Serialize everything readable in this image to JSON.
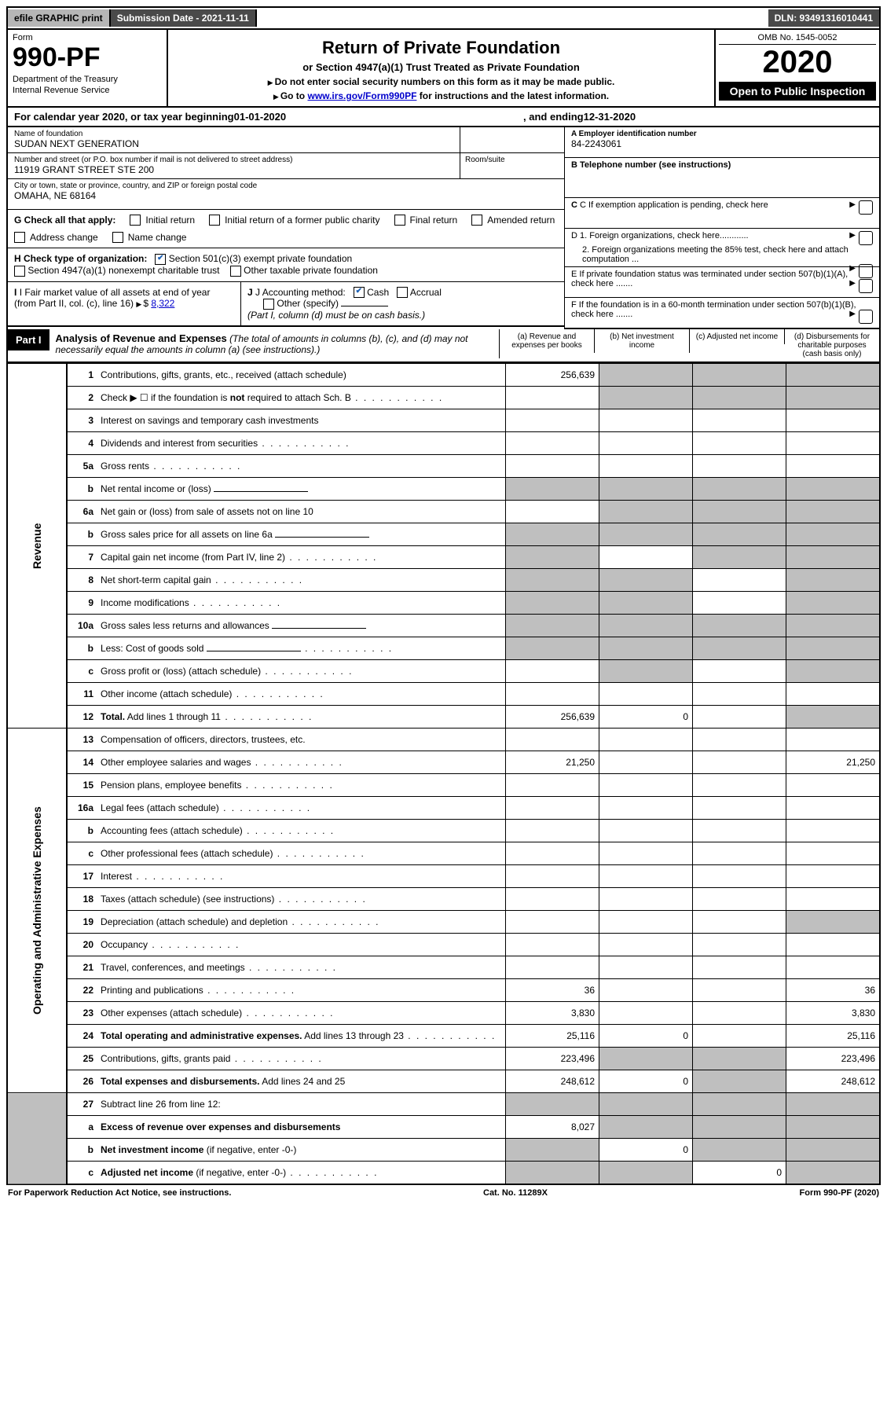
{
  "topbar": {
    "efile": "efile GRAPHIC print",
    "submission": "Submission Date - 2021-11-11",
    "dln": "DLN: 93491316010441"
  },
  "header": {
    "form_label": "Form",
    "form_number": "990-PF",
    "dept1": "Department of the Treasury",
    "dept2": "Internal Revenue Service",
    "title": "Return of Private Foundation",
    "subtitle": "or Section 4947(a)(1) Trust Treated as Private Foundation",
    "note1": "Do not enter social security numbers on this form as it may be made public.",
    "note2_pre": "Go to ",
    "note2_link": "www.irs.gov/Form990PF",
    "note2_post": " for instructions and the latest information.",
    "omb": "OMB No. 1545-0052",
    "year": "2020",
    "open": "Open to Public Inspection"
  },
  "calendar": {
    "text_pre": "For calendar year 2020, or tax year beginning ",
    "begin": "01-01-2020",
    "mid": ", and ending ",
    "end": "12-31-2020"
  },
  "info": {
    "name_label": "Name of foundation",
    "name": "SUDAN NEXT GENERATION",
    "addr_label": "Number and street (or P.O. box number if mail is not delivered to street address)",
    "addr": "11919 GRANT STREET STE 200",
    "room_label": "Room/suite",
    "city_label": "City or town, state or province, country, and ZIP or foreign postal code",
    "city": "OMAHA, NE  68164",
    "ein_label": "A Employer identification number",
    "ein": "84-2243061",
    "phone_label": "B Telephone number (see instructions)",
    "c_label": "C If exemption application is pending, check here",
    "d1": "D 1. Foreign organizations, check here............",
    "d2": "2. Foreign organizations meeting the 85% test, check here and attach computation ...",
    "e_label": "E  If private foundation status was terminated under section 507(b)(1)(A), check here .......",
    "f_label": "F  If the foundation is in a 60-month termination under section 507(b)(1)(B), check here .......",
    "g_label": "G Check all that apply:",
    "g_opts": [
      "Initial return",
      "Initial return of a former public charity",
      "Final return",
      "Amended return",
      "Address change",
      "Name change"
    ],
    "h_label": "H Check type of organization:",
    "h_opt1": "Section 501(c)(3) exempt private foundation",
    "h_opt2": "Section 4947(a)(1) nonexempt charitable trust",
    "h_opt3": "Other taxable private foundation",
    "i_label": "I Fair market value of all assets at end of year (from Part II, col. (c), line 16)",
    "i_value": "8,322",
    "j_label": "J Accounting method:",
    "j_cash": "Cash",
    "j_accrual": "Accrual",
    "j_other": "Other (specify)",
    "j_note": "(Part I, column (d) must be on cash basis.)"
  },
  "part1": {
    "label": "Part I",
    "title": "Analysis of Revenue and Expenses",
    "title_note": "(The total of amounts in columns (b), (c), and (d) may not necessarily equal the amounts in column (a) (see instructions).)",
    "col_a": "(a)   Revenue and expenses per books",
    "col_b": "(b)   Net investment income",
    "col_c": "(c)   Adjusted net income",
    "col_d": "(d)   Disbursements for charitable purposes (cash basis only)"
  },
  "sides": {
    "revenue": "Revenue",
    "expenses": "Operating and Administrative Expenses"
  },
  "rows": [
    {
      "n": "1",
      "d": "Contributions, gifts, grants, etc., received (attach schedule)",
      "a": "256,639",
      "shb": 1,
      "shc": 1,
      "shd": 1
    },
    {
      "n": "2",
      "d": "Check ▶ ☐ if the foundation is <b>not</b> required to attach Sch. B",
      "dots": 1,
      "noamt": 1,
      "shb": 1,
      "shc": 1,
      "shd": 1
    },
    {
      "n": "3",
      "d": "Interest on savings and temporary cash investments"
    },
    {
      "n": "4",
      "d": "Dividends and interest from securities",
      "dots": 1
    },
    {
      "n": "5a",
      "d": "Gross rents",
      "dots": 1
    },
    {
      "n": "b",
      "d": "Net rental income or (loss)",
      "box": 1,
      "shall": 1
    },
    {
      "n": "6a",
      "d": "Net gain or (loss) from sale of assets not on line 10",
      "shb": 1,
      "shc": 1,
      "shd": 1
    },
    {
      "n": "b",
      "d": "Gross sales price for all assets on line 6a",
      "box": 1,
      "shall": 1
    },
    {
      "n": "7",
      "d": "Capital gain net income (from Part IV, line 2)",
      "dots": 1,
      "sha": 1,
      "shc": 1,
      "shd": 1
    },
    {
      "n": "8",
      "d": "Net short-term capital gain",
      "dots": 1,
      "sha": 1,
      "shb": 1,
      "shd": 1
    },
    {
      "n": "9",
      "d": "Income modifications",
      "dots": 1,
      "sha": 1,
      "shb": 1,
      "shd": 1
    },
    {
      "n": "10a",
      "d": "Gross sales less returns and allowances",
      "box": 1,
      "shall": 1
    },
    {
      "n": "b",
      "d": "Less: Cost of goods sold",
      "dots": 1,
      "box": 1,
      "shall": 1
    },
    {
      "n": "c",
      "d": "Gross profit or (loss) (attach schedule)",
      "dots": 1,
      "shb": 1,
      "shd": 1
    },
    {
      "n": "11",
      "d": "Other income (attach schedule)",
      "dots": 1
    },
    {
      "n": "12",
      "d": "<b>Total.</b> Add lines 1 through 11",
      "dots": 1,
      "a": "256,639",
      "b": "0",
      "shd": 1
    }
  ],
  "exp_rows": [
    {
      "n": "13",
      "d": "Compensation of officers, directors, trustees, etc."
    },
    {
      "n": "14",
      "d": "Other employee salaries and wages",
      "dots": 1,
      "a": "21,250",
      "dd": "21,250"
    },
    {
      "n": "15",
      "d": "Pension plans, employee benefits",
      "dots": 1
    },
    {
      "n": "16a",
      "d": "Legal fees (attach schedule)",
      "dots": 1
    },
    {
      "n": "b",
      "d": "Accounting fees (attach schedule)",
      "dots": 1
    },
    {
      "n": "c",
      "d": "Other professional fees (attach schedule)",
      "dots": 1
    },
    {
      "n": "17",
      "d": "Interest",
      "dots": 1
    },
    {
      "n": "18",
      "d": "Taxes (attach schedule) (see instructions)",
      "dots": 1
    },
    {
      "n": "19",
      "d": "Depreciation (attach schedule) and depletion",
      "dots": 1,
      "shd": 1
    },
    {
      "n": "20",
      "d": "Occupancy",
      "dots": 1
    },
    {
      "n": "21",
      "d": "Travel, conferences, and meetings",
      "dots": 1
    },
    {
      "n": "22",
      "d": "Printing and publications",
      "dots": 1,
      "a": "36",
      "dd": "36"
    },
    {
      "n": "23",
      "d": "Other expenses (attach schedule)",
      "dots": 1,
      "a": "3,830",
      "dd": "3,830"
    },
    {
      "n": "24",
      "d": "<b>Total operating and administrative expenses.</b> Add lines 13 through 23",
      "dots": 1,
      "a": "25,116",
      "b": "0",
      "dd": "25,116"
    },
    {
      "n": "25",
      "d": "Contributions, gifts, grants paid",
      "dots": 1,
      "a": "223,496",
      "shb": 1,
      "shc": 1,
      "dd": "223,496"
    },
    {
      "n": "26",
      "d": "<b>Total expenses and disbursements.</b> Add lines 24 and 25",
      "a": "248,612",
      "b": "0",
      "shc": 1,
      "dd": "248,612"
    }
  ],
  "net_rows": [
    {
      "n": "27",
      "d": "Subtract line 26 from line 12:",
      "shall": 1
    },
    {
      "n": "a",
      "d": "<b>Excess of revenue over expenses and disbursements</b>",
      "a": "8,027",
      "shb": 1,
      "shc": 1,
      "shd": 1
    },
    {
      "n": "b",
      "d": "<b>Net investment income</b> (if negative, enter -0-)",
      "sha": 1,
      "b": "0",
      "shc": 1,
      "shd": 1
    },
    {
      "n": "c",
      "d": "<b>Adjusted net income</b> (if negative, enter -0-)",
      "dots": 1,
      "sha": 1,
      "shb": 1,
      "c": "0",
      "shd": 1
    }
  ],
  "footer": {
    "left": "For Paperwork Reduction Act Notice, see instructions.",
    "mid": "Cat. No. 11289X",
    "right": "Form 990-PF (2020)"
  }
}
